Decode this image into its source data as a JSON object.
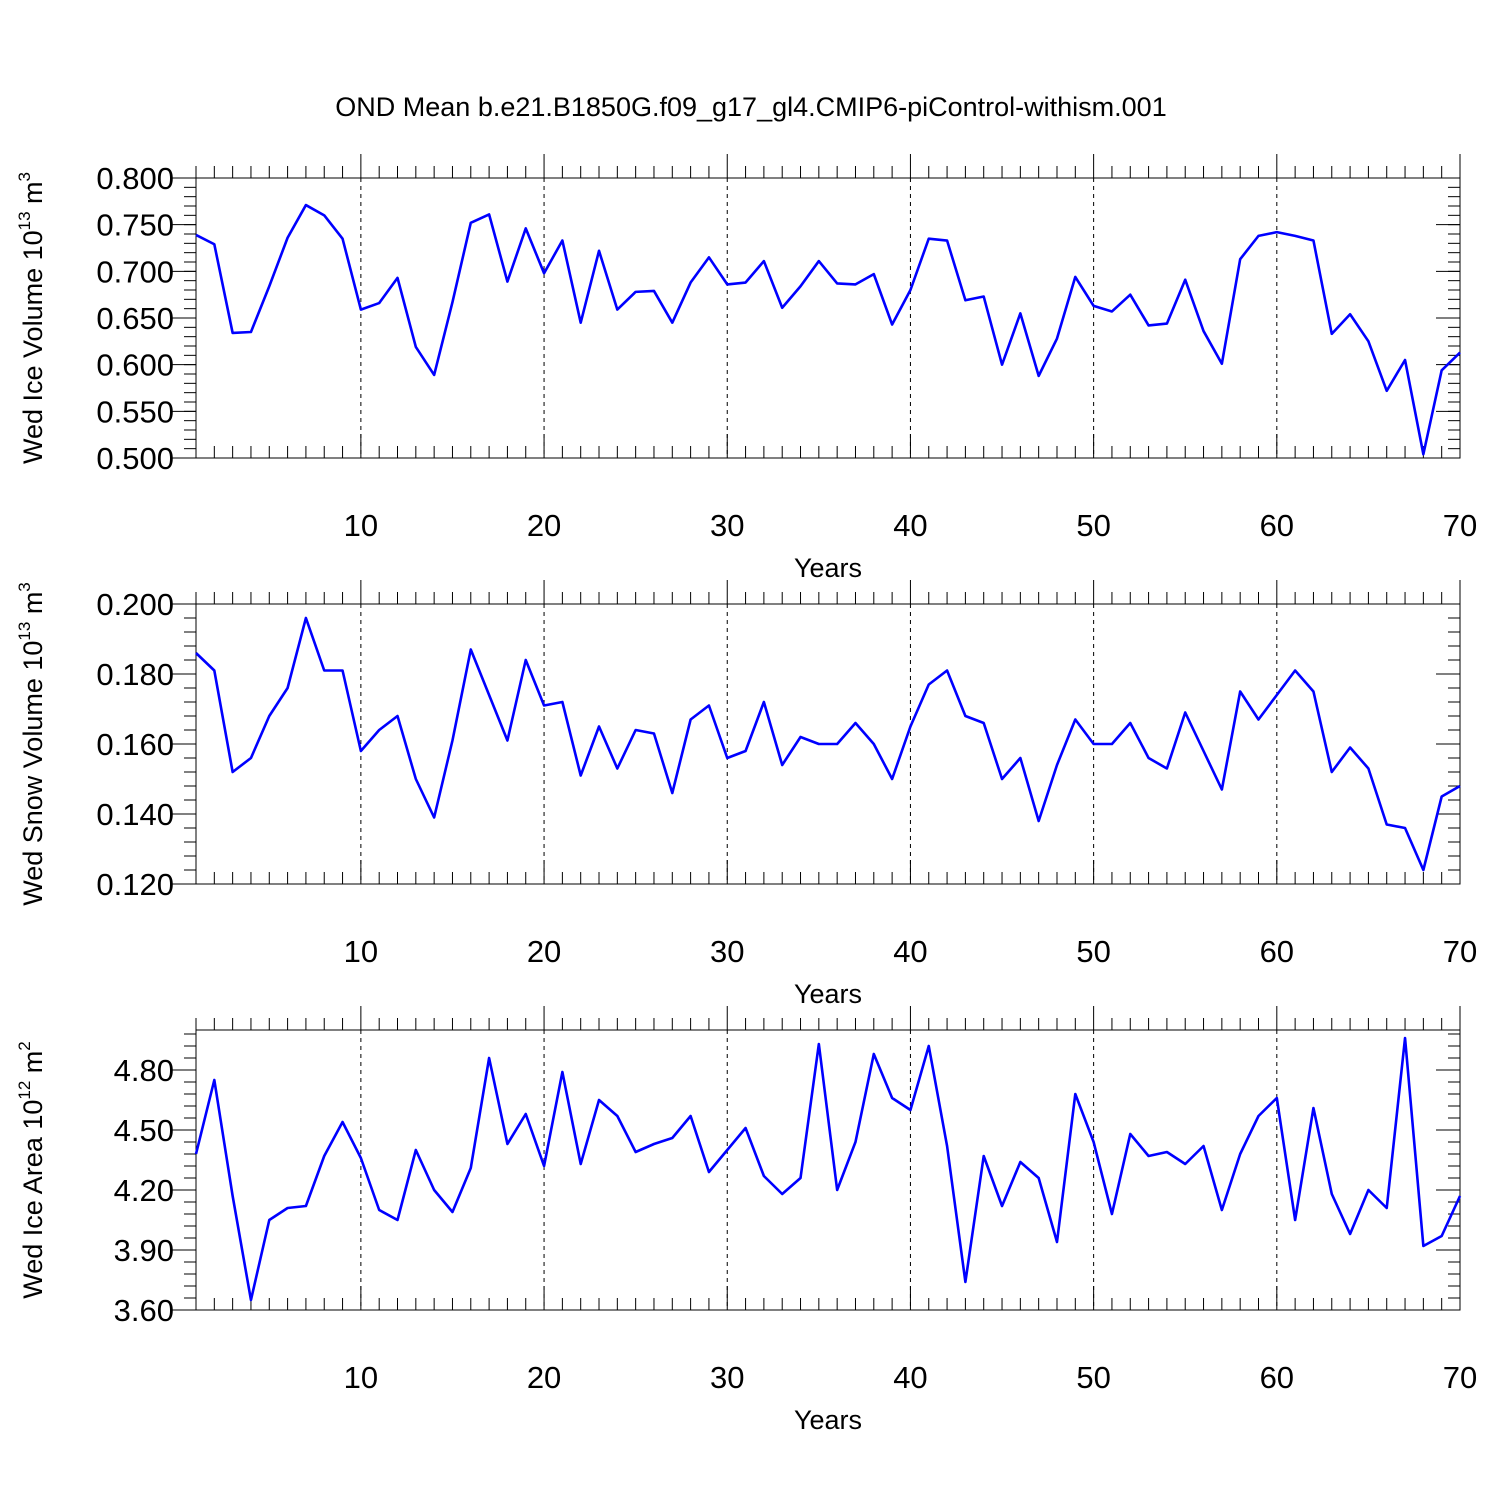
{
  "title": "OND Mean b.e21.B1850G.f09_g17_gl4.CMIP6-piControl-withism.001",
  "series_color": "#0000ff",
  "chart_data": [
    {
      "type": "line",
      "title": "",
      "ylabel_parts": [
        "Wed Ice Volume 10",
        "13",
        " m",
        "3"
      ],
      "xlabel": "Years",
      "xlim": [
        1,
        70
      ],
      "ylim": [
        0.5,
        0.8
      ],
      "x_ticks": [
        10,
        20,
        30,
        40,
        50,
        60,
        70
      ],
      "y_ticks": [
        "0.500",
        "0.550",
        "0.600",
        "0.650",
        "0.700",
        "0.750",
        "0.800"
      ],
      "y_tick_values": [
        0.5,
        0.55,
        0.6,
        0.65,
        0.7,
        0.75,
        0.8
      ],
      "y_minor_step": 0.01,
      "grid": "vertical-dashed-at-major",
      "legend": "none",
      "values": [
        0.739,
        0.729,
        0.634,
        0.635,
        0.684,
        0.736,
        0.771,
        0.76,
        0.735,
        0.659,
        0.666,
        0.693,
        0.619,
        0.589,
        0.667,
        0.752,
        0.761,
        0.689,
        0.746,
        0.698,
        0.733,
        0.645,
        0.722,
        0.659,
        0.678,
        0.679,
        0.645,
        0.688,
        0.715,
        0.686,
        0.688,
        0.711,
        0.661,
        0.684,
        0.711,
        0.687,
        0.686,
        0.697,
        0.643,
        0.68,
        0.735,
        0.733,
        0.669,
        0.673,
        0.6,
        0.655,
        0.588,
        0.628,
        0.694,
        0.663,
        0.657,
        0.675,
        0.642,
        0.644,
        0.691,
        0.636,
        0.601,
        0.713,
        0.738,
        0.742,
        0.738,
        0.733,
        0.633,
        0.654,
        0.625,
        0.572,
        0.605,
        0.504,
        0.594,
        0.613
      ]
    },
    {
      "type": "line",
      "title": "",
      "ylabel_parts": [
        "Wed Snow Volume 10",
        "13",
        " m",
        "3"
      ],
      "xlabel": "Years",
      "xlim": [
        1,
        70
      ],
      "ylim": [
        0.12,
        0.2
      ],
      "x_ticks": [
        10,
        20,
        30,
        40,
        50,
        60,
        70
      ],
      "y_ticks": [
        "0.120",
        "0.140",
        "0.160",
        "0.180",
        "0.200"
      ],
      "y_tick_values": [
        0.12,
        0.14,
        0.16,
        0.18,
        0.2
      ],
      "y_minor_step": 0.004,
      "grid": "vertical-dashed-at-major",
      "legend": "none",
      "values": [
        0.186,
        0.181,
        0.152,
        0.156,
        0.168,
        0.176,
        0.196,
        0.181,
        0.181,
        0.158,
        0.164,
        0.168,
        0.15,
        0.139,
        0.161,
        0.187,
        0.174,
        0.161,
        0.184,
        0.171,
        0.172,
        0.151,
        0.165,
        0.153,
        0.164,
        0.163,
        0.146,
        0.167,
        0.171,
        0.156,
        0.158,
        0.172,
        0.154,
        0.162,
        0.16,
        0.16,
        0.166,
        0.16,
        0.15,
        0.165,
        0.177,
        0.181,
        0.168,
        0.166,
        0.15,
        0.156,
        0.138,
        0.154,
        0.167,
        0.16,
        0.16,
        0.166,
        0.156,
        0.153,
        0.169,
        0.158,
        0.147,
        0.175,
        0.167,
        0.174,
        0.181,
        0.175,
        0.152,
        0.159,
        0.153,
        0.137,
        0.136,
        0.124,
        0.145,
        0.148
      ]
    },
    {
      "type": "line",
      "title": "",
      "ylabel_parts": [
        "Wed Ice Area 10",
        "12",
        " m",
        "2"
      ],
      "xlabel": "Years",
      "xlim": [
        1,
        70
      ],
      "ylim": [
        3.6,
        5.0
      ],
      "x_ticks": [
        10,
        20,
        30,
        40,
        50,
        60,
        70
      ],
      "y_ticks": [
        "3.60",
        "3.90",
        "4.20",
        "4.50",
        "4.80"
      ],
      "y_tick_values": [
        3.6,
        3.9,
        4.2,
        4.5,
        4.8
      ],
      "y_minor_step": 0.06,
      "grid": "vertical-dashed-at-major",
      "legend": "none",
      "values": [
        4.38,
        4.75,
        4.17,
        3.65,
        4.05,
        4.11,
        4.12,
        4.37,
        4.54,
        4.36,
        4.1,
        4.05,
        4.4,
        4.2,
        4.09,
        4.31,
        4.86,
        4.43,
        4.58,
        4.32,
        4.79,
        4.33,
        4.65,
        4.57,
        4.39,
        4.43,
        4.46,
        4.57,
        4.29,
        4.4,
        4.51,
        4.27,
        4.18,
        4.26,
        4.93,
        4.2,
        4.44,
        4.88,
        4.66,
        4.6,
        4.92,
        4.42,
        3.74,
        4.37,
        4.12,
        4.34,
        4.26,
        3.94,
        4.68,
        4.44,
        4.08,
        4.48,
        4.37,
        4.39,
        4.33,
        4.42,
        4.1,
        4.38,
        4.57,
        4.66,
        4.05,
        4.61,
        4.18,
        3.98,
        4.2,
        4.11,
        4.96,
        3.92,
        3.97,
        4.17
      ]
    }
  ]
}
